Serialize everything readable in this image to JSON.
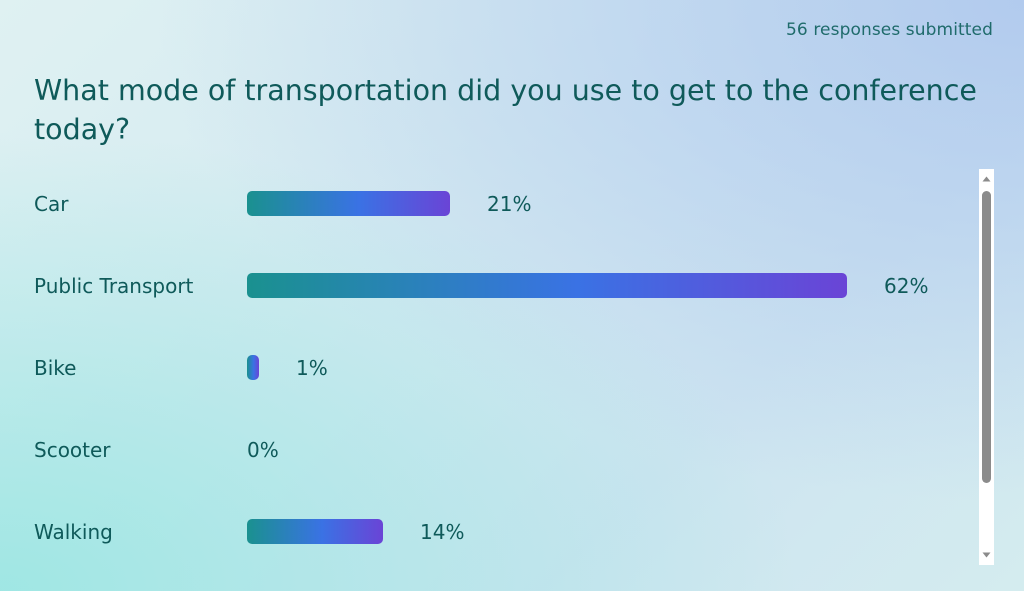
{
  "header": {
    "responses_text": "56 responses submitted"
  },
  "poll": {
    "question": "What mode of transportation did you use to get to the conference today?",
    "options": [
      {
        "label": "Car",
        "percent_text": "21%",
        "value": 21
      },
      {
        "label": "Public Transport",
        "percent_text": "62%",
        "value": 62
      },
      {
        "label": "Bike",
        "percent_text": "1%",
        "value": 1
      },
      {
        "label": "Scooter",
        "percent_text": "0%",
        "value": 0
      },
      {
        "label": "Walking",
        "percent_text": "14%",
        "value": 14
      }
    ]
  },
  "colors": {
    "text": "#0f5a5a",
    "bar_start": "#1a918f",
    "bar_mid": "#3a72e4",
    "bar_end": "#6a44d6"
  },
  "icons": {
    "scroll_up": "triangle-up-icon",
    "scroll_down": "triangle-down-icon"
  }
}
